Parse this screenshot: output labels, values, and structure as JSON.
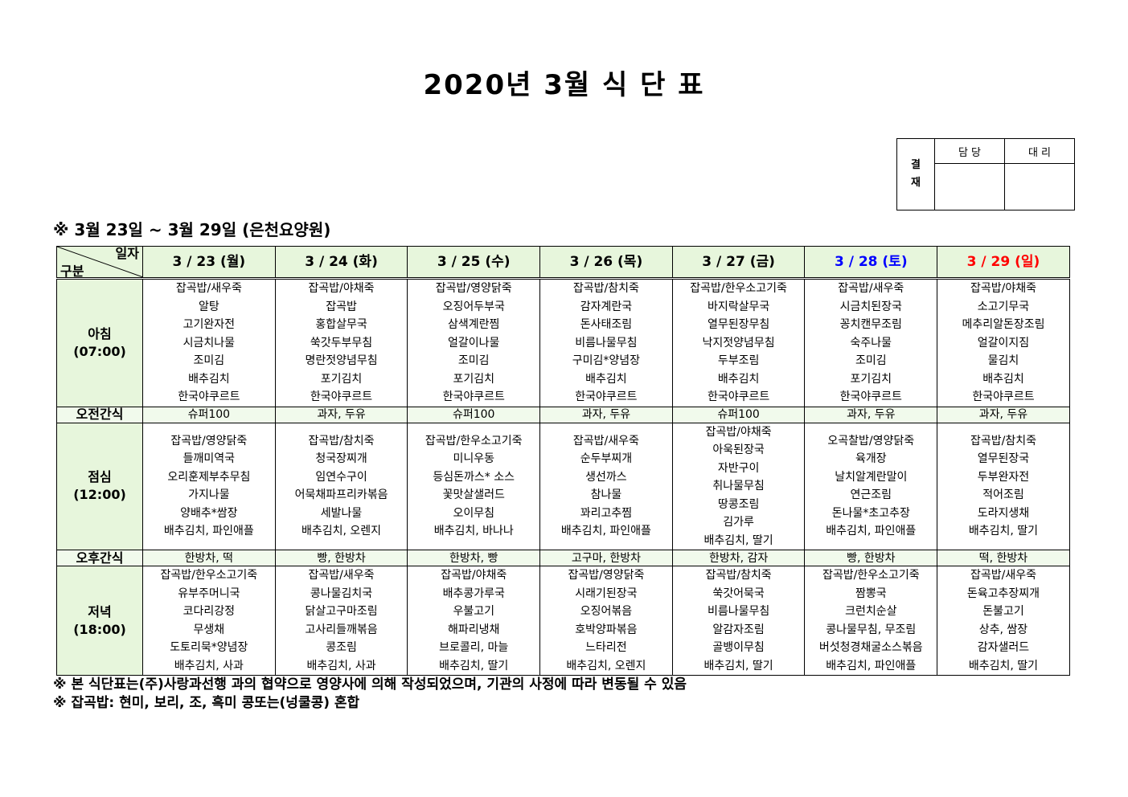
{
  "title": "2020년 3월 식 단 표",
  "approval": {
    "label": "결\n재",
    "label_top": "결",
    "label_bottom": "재",
    "col1": "담 당",
    "col2": "대 리"
  },
  "subtitle": "※ 3월 23일 ~ 3월 29일 (은천요양원)",
  "table": {
    "corner_top": "일자",
    "corner_bottom": "구분",
    "days": [
      {
        "label": "3 / 23 (월)",
        "color": "#000000"
      },
      {
        "label": "3 / 24 (화)",
        "color": "#000000"
      },
      {
        "label": "3 / 25 (수)",
        "color": "#000000"
      },
      {
        "label": "3 / 26 (목)",
        "color": "#000000"
      },
      {
        "label": "3 / 27 (금)",
        "color": "#000000"
      },
      {
        "label": "3 / 28 (토)",
        "color": "#0000ff"
      },
      {
        "label": "3 / 29 (일)",
        "color": "#ff0000"
      }
    ],
    "rows": [
      {
        "label": "아침",
        "time": "(07:00)",
        "type": "meal",
        "cells": [
          [
            "잡곡밥/새우죽",
            "알탕",
            "고기완자전",
            "시금치나물",
            "조미김",
            "배추김치",
            "한국야쿠르트"
          ],
          [
            "잡곡밥/야채죽",
            "잡곡밥",
            "홍합살무국",
            "쑥갓두부무침",
            "명란젓양념무침",
            "포기김치",
            "한국야쿠르트"
          ],
          [
            "잡곡밥/영양닭죽",
            "오징어두부국",
            "삼색계란찜",
            "얼갈이나물",
            "조미김",
            "포기김치",
            "한국야쿠르트"
          ],
          [
            "잡곡밥/참치죽",
            "감자계란국",
            "돈사태조림",
            "비름나물무침",
            "구미김*양념장",
            "배추김치",
            "한국야쿠르트"
          ],
          [
            "잡곡밥/한우소고기죽",
            "바지락살무국",
            "열무된장무침",
            "낙지젓양념무침",
            "두부조림",
            "배추김치",
            "한국야쿠르트"
          ],
          [
            "잡곡밥/새우죽",
            "시금치된장국",
            "꽁치캔무조림",
            "숙주나물",
            "조미김",
            "포기김치",
            "한국야쿠르트"
          ],
          [
            "잡곡밥/야채죽",
            "소고기무국",
            "메추리알돈장조림",
            "얼갈이지짐",
            "물김치",
            "배추김치",
            "한국야쿠르트"
          ]
        ]
      },
      {
        "label": "오전간식",
        "type": "snack",
        "cells": [
          "슈퍼100",
          "과자, 두유",
          "슈퍼100",
          "과자, 두유",
          "슈퍼100",
          "과자, 두유",
          "과자, 두유"
        ]
      },
      {
        "label": "점심",
        "time": "(12:00)",
        "type": "meal",
        "cells": [
          [
            "잡곡밥/영양닭죽",
            "들깨미역국",
            "오리훈제부추무침",
            "가지나물",
            "양배추*쌈장",
            "배추김치, 파인애플"
          ],
          [
            "잡곡밥/참치죽",
            "청국장찌개",
            "임연수구이",
            "어묵채파프리카볶음",
            "세발나물",
            "배추김치, 오렌지"
          ],
          [
            "잡곡밥/한우소고기죽",
            "미니우동",
            "등심돈까스* 소스",
            "꽃맛살샐러드",
            "오이무침",
            "배추김치, 바나나"
          ],
          [
            "잡곡밥/새우죽",
            "순두부찌개",
            "생선까스",
            "참나물",
            "꽈리고추찜",
            "배추김치, 파인애플"
          ],
          [
            "잡곡밥/야채죽",
            "아욱된장국",
            "자반구이",
            "취나물무침",
            "땅콩조림",
            "김가루",
            "배추김치, 딸기"
          ],
          [
            "오곡찰밥/영양닭죽",
            "육개장",
            "날치알계란말이",
            "연근조림",
            "돈나물*초고추장",
            "배추김치, 파인애플"
          ],
          [
            "잡곡밥/참치죽",
            "열무된장국",
            "두부완자전",
            "적어조림",
            "도라지생채",
            "배추김치, 딸기"
          ]
        ]
      },
      {
        "label": "오후간식",
        "type": "snack",
        "cells": [
          "한방차, 떡",
          "빵, 한방차",
          "한방차, 빵",
          "고구마, 한방차",
          "한방차, 감자",
          "빵, 한방차",
          "떡, 한방차"
        ]
      },
      {
        "label": "저녁",
        "time": "(18:00)",
        "type": "meal",
        "cells": [
          [
            "잡곡밥/한우소고기죽",
            "유부주머니국",
            "코다리강정",
            "무생채",
            "도토리묵*양념장",
            "배추김치, 사과"
          ],
          [
            "잡곡밥/새우죽",
            "콩나물김치국",
            "닭살고구마조림",
            "고사리들깨볶음",
            "콩조림",
            "배추김치, 사과"
          ],
          [
            "잡곡밥/야채죽",
            "배추콩가루국",
            "우불고기",
            "해파리냉채",
            "브로콜리, 마늘",
            "배추김치, 딸기"
          ],
          [
            "잡곡밥/영양닭죽",
            "시래기된장국",
            "오징어볶음",
            "호박양파볶음",
            "느타리전",
            "배추김치, 오렌지"
          ],
          [
            "잡곡밥/참치죽",
            "쑥갓어묵국",
            "비름나물무침",
            "알감자조림",
            "골뱅이무침",
            "배추김치, 딸기"
          ],
          [
            "잡곡밥/한우소고기죽",
            "짬뽕국",
            "크런치순살",
            "콩나물무침, 무조림",
            "버섯청경채굴소스볶음",
            "배추김치, 파인애플"
          ],
          [
            "잡곡밥/새우죽",
            "돈육고추장찌개",
            "돈불고기",
            "상추, 쌈장",
            "감자샐러드",
            "배추김치, 딸기"
          ]
        ]
      }
    ]
  },
  "notes": [
    "※ 본 식단표는(주)사랑과선행 과의 협약으로 영양사에 의해 작성되었으며, 기관의 사정에 따라 변동될 수 있음",
    "※ 잡곡밥: 현미, 보리, 조, 흑미 콩또는(넝쿨콩) 혼합"
  ],
  "colors": {
    "header_bg": "#e7f6dc",
    "snack_bg": "#f1faec",
    "saturday": "#0000ff",
    "sunday": "#ff0000"
  }
}
